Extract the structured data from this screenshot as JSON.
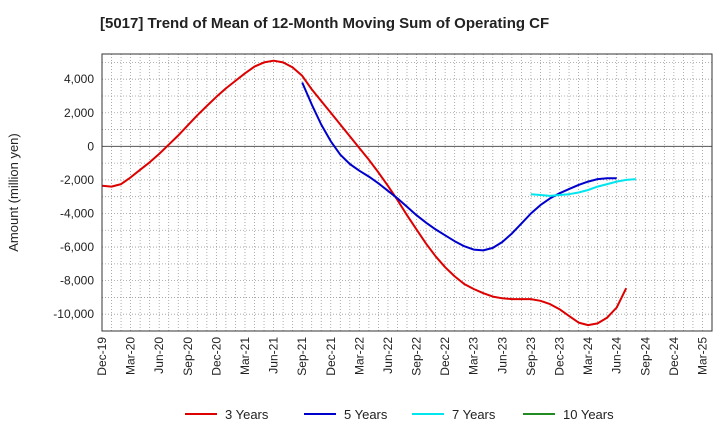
{
  "chart_data": {
    "type": "line",
    "title": "[5017]  Trend of Mean of 12-Month Moving Sum of Operating CF",
    "xlabel": "",
    "ylabel": "Amount (million yen)",
    "ylim": [
      -11000,
      5500
    ],
    "yticks": [
      4000,
      2000,
      0,
      -2000,
      -4000,
      -6000,
      -8000,
      -10000
    ],
    "ytick_labels": [
      "4,000",
      "2,000",
      "0",
      "-2,000",
      "-4,000",
      "-6,000",
      "-8,000",
      "-10,000"
    ],
    "x_start": "Dec-19",
    "x_months": 64,
    "xtick_labels": [
      "Dec-19",
      "Mar-20",
      "Jun-20",
      "Sep-20",
      "Dec-20",
      "Mar-21",
      "Jun-21",
      "Sep-21",
      "Dec-21",
      "Mar-22",
      "Jun-22",
      "Sep-22",
      "Dec-22",
      "Mar-23",
      "Jun-23",
      "Sep-23",
      "Dec-23",
      "Mar-24",
      "Jun-24",
      "Sep-24",
      "Dec-24",
      "Mar-25"
    ],
    "grid": true,
    "legend_position": "bottom",
    "series": [
      {
        "name": "3 Years",
        "color": "#dd0000",
        "start_index": 0,
        "values": [
          -2350,
          -2400,
          -2250,
          -1850,
          -1400,
          -950,
          -450,
          100,
          650,
          1250,
          1850,
          2400,
          2950,
          3450,
          3900,
          4350,
          4750,
          5000,
          5100,
          5000,
          4700,
          4200,
          3400,
          2700,
          2000,
          1300,
          600,
          -100,
          -800,
          -1550,
          -2350,
          -3200,
          -4100,
          -4950,
          -5800,
          -6550,
          -7200,
          -7750,
          -8200,
          -8500,
          -8750,
          -8950,
          -9050,
          -9100,
          -9100,
          -9100,
          -9200,
          -9400,
          -9700,
          -10100,
          -10500,
          -10650,
          -10550,
          -10200,
          -9600,
          -8450
        ]
      },
      {
        "name": "5 Years",
        "color": "#0000cc",
        "start_index": 21,
        "values": [
          3800,
          2500,
          1300,
          300,
          -500,
          -1050,
          -1450,
          -1800,
          -2200,
          -2650,
          -3100,
          -3600,
          -4100,
          -4550,
          -4950,
          -5300,
          -5650,
          -5950,
          -6150,
          -6200,
          -6050,
          -5700,
          -5200,
          -4600,
          -4000,
          -3500,
          -3100,
          -2800,
          -2550,
          -2300,
          -2100,
          -1950,
          -1900,
          -1900
        ]
      },
      {
        "name": "7 Years",
        "color": "#00e5ee",
        "start_index": 45,
        "values": [
          -2850,
          -2900,
          -2950,
          -2900,
          -2850,
          -2750,
          -2600,
          -2400,
          -2250,
          -2100,
          -2000,
          -1950
        ]
      },
      {
        "name": "10 Years",
        "color": "#228b22",
        "start_index": 0,
        "values": []
      }
    ]
  }
}
